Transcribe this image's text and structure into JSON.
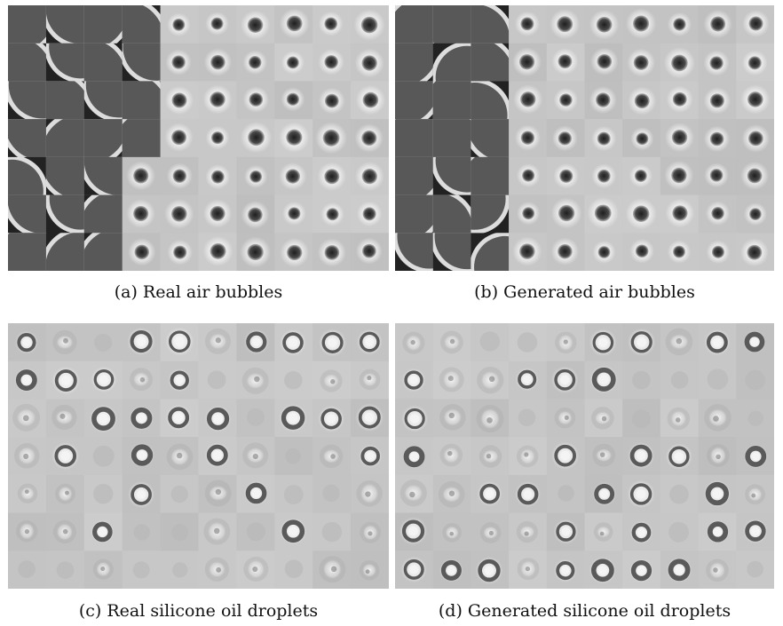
{
  "figure": {
    "panels": [
      {
        "id": "a",
        "caption": "(a) Real air bubbles"
      },
      {
        "id": "b",
        "caption": "(b) Generated air bubbles"
      },
      {
        "id": "c",
        "caption": "(c) Real silicone oil droplets"
      },
      {
        "id": "d",
        "caption": "(d) Generated silicone oil droplets"
      }
    ]
  },
  "colors": {
    "tile_background": "#c4c4c4",
    "dark_bubble": "#3a3a3a",
    "bubble_halo": "#e8e8e8",
    "droplet_core": "#f4f4f4",
    "droplet_ring": "#5a5a5a",
    "caption_text": "#111111"
  }
}
